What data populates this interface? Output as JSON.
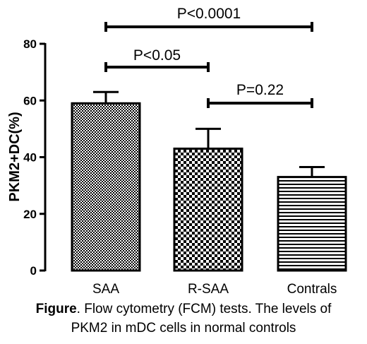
{
  "chart_data": {
    "type": "bar",
    "title": "",
    "xlabel": "",
    "ylabel": "PKM2+DC(%)",
    "ylim": [
      0,
      80
    ],
    "yticks": [
      0,
      20,
      40,
      60,
      80
    ],
    "grid": false,
    "legend": "none",
    "categories": [
      "SAA",
      "R-SAA",
      "Contrals"
    ],
    "values": [
      59,
      43,
      33
    ],
    "errors": [
      4,
      7,
      3.5
    ],
    "significance": [
      {
        "from": "SAA",
        "to": "Contrals",
        "label": "P<0.0001"
      },
      {
        "from": "SAA",
        "to": "R-SAA",
        "label": "P<0.05"
      },
      {
        "from": "R-SAA",
        "to": "Contrals",
        "label": "P=0.22"
      }
    ]
  },
  "caption": {
    "bold": "Figure",
    "line1": ". Flow cytometry (FCM) tests. The levels of",
    "line2": "PKM2 in mDC cells in normal controls"
  },
  "colors": {
    "ink": "#000000",
    "background": "#ffffff"
  }
}
